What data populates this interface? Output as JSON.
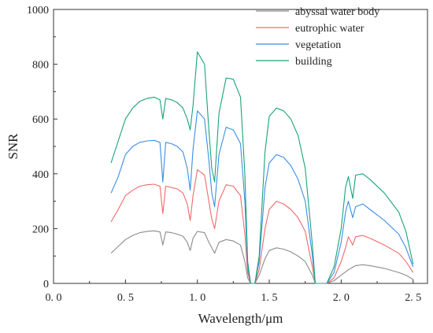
{
  "chart_data": {
    "type": "line",
    "title": "",
    "xlabel": "Wavelength/μm",
    "ylabel": "SNR",
    "xlim": [
      0.0,
      2.6
    ],
    "ylim": [
      0,
      1000
    ],
    "x_ticks": [
      0.0,
      0.5,
      1.0,
      1.5,
      2.0,
      2.5
    ],
    "x_tick_labels": [
      "0. 0",
      "0. 5",
      "1. 0",
      "1. 5",
      "2. 0",
      "2. 5"
    ],
    "y_ticks": [
      0,
      200,
      400,
      600,
      800,
      1000
    ],
    "y_tick_labels": [
      "0",
      "200",
      "400",
      "600",
      "800",
      "1000"
    ],
    "grid": false,
    "legend_position": "top-right",
    "series": [
      {
        "name": "abyssal water body",
        "color": "#8c8c8c",
        "points": [
          [
            0.4,
            110
          ],
          [
            0.45,
            135
          ],
          [
            0.5,
            160
          ],
          [
            0.55,
            175
          ],
          [
            0.6,
            185
          ],
          [
            0.65,
            190
          ],
          [
            0.7,
            192
          ],
          [
            0.74,
            188
          ],
          [
            0.76,
            140
          ],
          [
            0.78,
            188
          ],
          [
            0.82,
            185
          ],
          [
            0.86,
            180
          ],
          [
            0.9,
            172
          ],
          [
            0.93,
            150
          ],
          [
            0.95,
            120
          ],
          [
            0.97,
            165
          ],
          [
            1.0,
            190
          ],
          [
            1.05,
            185
          ],
          [
            1.08,
            150
          ],
          [
            1.1,
            130
          ],
          [
            1.12,
            110
          ],
          [
            1.15,
            150
          ],
          [
            1.2,
            160
          ],
          [
            1.25,
            155
          ],
          [
            1.3,
            140
          ],
          [
            1.33,
            80
          ],
          [
            1.35,
            20
          ],
          [
            1.37,
            0
          ],
          [
            1.4,
            0
          ],
          [
            1.43,
            30
          ],
          [
            1.47,
            90
          ],
          [
            1.5,
            120
          ],
          [
            1.55,
            130
          ],
          [
            1.6,
            125
          ],
          [
            1.65,
            115
          ],
          [
            1.7,
            100
          ],
          [
            1.75,
            80
          ],
          [
            1.8,
            30
          ],
          [
            1.82,
            0
          ],
          [
            1.85,
            0
          ],
          [
            1.9,
            0
          ],
          [
            1.95,
            10
          ],
          [
            2.0,
            30
          ],
          [
            2.05,
            50
          ],
          [
            2.1,
            65
          ],
          [
            2.15,
            68
          ],
          [
            2.2,
            65
          ],
          [
            2.3,
            55
          ],
          [
            2.4,
            40
          ],
          [
            2.45,
            30
          ],
          [
            2.5,
            15
          ]
        ]
      },
      {
        "name": "eutrophic water",
        "color": "#f06a6a",
        "points": [
          [
            0.4,
            225
          ],
          [
            0.45,
            270
          ],
          [
            0.5,
            320
          ],
          [
            0.55,
            340
          ],
          [
            0.6,
            355
          ],
          [
            0.65,
            360
          ],
          [
            0.7,
            362
          ],
          [
            0.74,
            355
          ],
          [
            0.76,
            255
          ],
          [
            0.78,
            355
          ],
          [
            0.82,
            350
          ],
          [
            0.86,
            345
          ],
          [
            0.9,
            330
          ],
          [
            0.93,
            290
          ],
          [
            0.95,
            230
          ],
          [
            0.97,
            320
          ],
          [
            1.0,
            415
          ],
          [
            1.05,
            395
          ],
          [
            1.08,
            300
          ],
          [
            1.1,
            235
          ],
          [
            1.12,
            200
          ],
          [
            1.15,
            300
          ],
          [
            1.2,
            360
          ],
          [
            1.25,
            355
          ],
          [
            1.3,
            320
          ],
          [
            1.33,
            180
          ],
          [
            1.35,
            40
          ],
          [
            1.37,
            0
          ],
          [
            1.4,
            0
          ],
          [
            1.43,
            50
          ],
          [
            1.47,
            200
          ],
          [
            1.5,
            270
          ],
          [
            1.55,
            300
          ],
          [
            1.6,
            290
          ],
          [
            1.65,
            270
          ],
          [
            1.7,
            240
          ],
          [
            1.75,
            190
          ],
          [
            1.8,
            60
          ],
          [
            1.82,
            0
          ],
          [
            1.85,
            0
          ],
          [
            1.9,
            0
          ],
          [
            1.95,
            20
          ],
          [
            2.0,
            80
          ],
          [
            2.03,
            130
          ],
          [
            2.05,
            170
          ],
          [
            2.08,
            140
          ],
          [
            2.1,
            170
          ],
          [
            2.15,
            175
          ],
          [
            2.2,
            165
          ],
          [
            2.3,
            140
          ],
          [
            2.4,
            110
          ],
          [
            2.45,
            80
          ],
          [
            2.5,
            40
          ]
        ]
      },
      {
        "name": "vegetation",
        "color": "#3a8ee6",
        "points": [
          [
            0.4,
            330
          ],
          [
            0.45,
            390
          ],
          [
            0.5,
            470
          ],
          [
            0.55,
            500
          ],
          [
            0.6,
            515
          ],
          [
            0.65,
            520
          ],
          [
            0.7,
            522
          ],
          [
            0.74,
            515
          ],
          [
            0.76,
            370
          ],
          [
            0.78,
            515
          ],
          [
            0.82,
            510
          ],
          [
            0.86,
            500
          ],
          [
            0.9,
            480
          ],
          [
            0.93,
            420
          ],
          [
            0.95,
            340
          ],
          [
            0.97,
            490
          ],
          [
            1.0,
            630
          ],
          [
            1.05,
            600
          ],
          [
            1.08,
            450
          ],
          [
            1.1,
            330
          ],
          [
            1.12,
            280
          ],
          [
            1.15,
            470
          ],
          [
            1.2,
            570
          ],
          [
            1.25,
            560
          ],
          [
            1.3,
            510
          ],
          [
            1.33,
            300
          ],
          [
            1.35,
            60
          ],
          [
            1.37,
            0
          ],
          [
            1.4,
            0
          ],
          [
            1.43,
            80
          ],
          [
            1.47,
            350
          ],
          [
            1.5,
            440
          ],
          [
            1.55,
            470
          ],
          [
            1.6,
            460
          ],
          [
            1.65,
            430
          ],
          [
            1.7,
            380
          ],
          [
            1.75,
            300
          ],
          [
            1.8,
            100
          ],
          [
            1.82,
            0
          ],
          [
            1.85,
            0
          ],
          [
            1.9,
            0
          ],
          [
            1.95,
            40
          ],
          [
            2.0,
            150
          ],
          [
            2.03,
            260
          ],
          [
            2.05,
            300
          ],
          [
            2.08,
            240
          ],
          [
            2.1,
            280
          ],
          [
            2.15,
            290
          ],
          [
            2.2,
            270
          ],
          [
            2.3,
            230
          ],
          [
            2.4,
            180
          ],
          [
            2.45,
            130
          ],
          [
            2.5,
            60
          ]
        ]
      },
      {
        "name": "building",
        "color": "#1aa37a",
        "points": [
          [
            0.4,
            440
          ],
          [
            0.45,
            520
          ],
          [
            0.5,
            600
          ],
          [
            0.55,
            640
          ],
          [
            0.6,
            665
          ],
          [
            0.65,
            675
          ],
          [
            0.7,
            680
          ],
          [
            0.74,
            670
          ],
          [
            0.76,
            600
          ],
          [
            0.78,
            675
          ],
          [
            0.82,
            670
          ],
          [
            0.86,
            660
          ],
          [
            0.9,
            640
          ],
          [
            0.93,
            600
          ],
          [
            0.95,
            560
          ],
          [
            0.97,
            650
          ],
          [
            1.0,
            845
          ],
          [
            1.05,
            800
          ],
          [
            1.08,
            560
          ],
          [
            1.1,
            420
          ],
          [
            1.12,
            370
          ],
          [
            1.15,
            620
          ],
          [
            1.2,
            750
          ],
          [
            1.25,
            745
          ],
          [
            1.3,
            680
          ],
          [
            1.33,
            400
          ],
          [
            1.35,
            80
          ],
          [
            1.37,
            0
          ],
          [
            1.4,
            0
          ],
          [
            1.43,
            100
          ],
          [
            1.47,
            480
          ],
          [
            1.5,
            610
          ],
          [
            1.55,
            640
          ],
          [
            1.6,
            630
          ],
          [
            1.65,
            600
          ],
          [
            1.7,
            540
          ],
          [
            1.75,
            420
          ],
          [
            1.8,
            140
          ],
          [
            1.82,
            0
          ],
          [
            1.85,
            0
          ],
          [
            1.9,
            0
          ],
          [
            1.95,
            60
          ],
          [
            2.0,
            200
          ],
          [
            2.03,
            350
          ],
          [
            2.05,
            390
          ],
          [
            2.08,
            310
          ],
          [
            2.1,
            395
          ],
          [
            2.15,
            400
          ],
          [
            2.2,
            380
          ],
          [
            2.3,
            330
          ],
          [
            2.4,
            260
          ],
          [
            2.45,
            190
          ],
          [
            2.5,
            70
          ]
        ]
      }
    ]
  }
}
